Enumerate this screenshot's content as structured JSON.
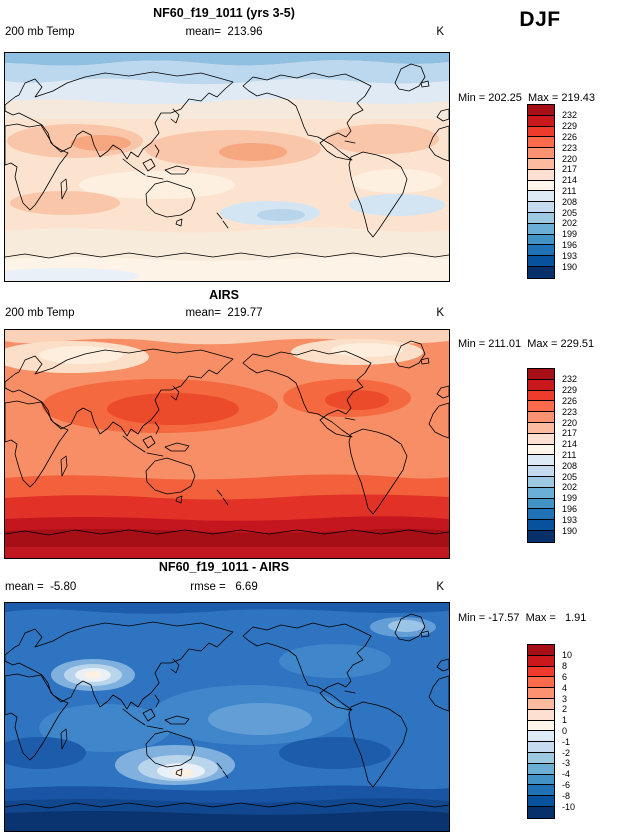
{
  "season": "DJF",
  "palette": {
    "colors": [
      "#a50f15",
      "#cb181d",
      "#ef3b2c",
      "#fb6a4a",
      "#fc9272",
      "#fcbba1",
      "#fee0d2",
      "#fff5eb",
      "#deebf7",
      "#c6dbef",
      "#9ecae1",
      "#6baed6",
      "#4292c6",
      "#2171b5",
      "#08519c",
      "#08306b"
    ]
  },
  "panels": [
    {
      "title": "NF60_f19_1011 (yrs 3-5)",
      "var_label": "200 mb Temp",
      "center_label": "mean=  213.96",
      "units": "K",
      "minmax": "Min = 202.25  Max = 219.43",
      "colorbar_labels": [
        "232",
        "229",
        "226",
        "223",
        "220",
        "217",
        "214",
        "211",
        "208",
        "205",
        "202",
        "199",
        "196",
        "193",
        "190"
      ]
    },
    {
      "title": "AIRS",
      "var_label": "200 mb Temp",
      "center_label": "mean=  219.77",
      "units": "K",
      "minmax": "Min = 211.01  Max = 229.51",
      "colorbar_labels": [
        "232",
        "229",
        "226",
        "223",
        "220",
        "217",
        "214",
        "211",
        "208",
        "205",
        "202",
        "199",
        "196",
        "193",
        "190"
      ]
    },
    {
      "title": "NF60_f19_1011 - AIRS",
      "var_label": "mean =  -5.80",
      "center_label": "rmse =   6.69",
      "units": "K",
      "minmax": "Min = -17.57  Max =   1.91",
      "colorbar_labels": [
        "10",
        "8",
        "6",
        "4",
        "3",
        "2",
        "1",
        "0",
        "-1",
        "-2",
        "-3",
        "-4",
        "-6",
        "-8",
        "-10"
      ]
    }
  ],
  "chart_data": [
    {
      "type": "heatmap",
      "title": "NF60_f19_1011 (yrs 3-5)",
      "variable": "200 mb Temp",
      "season": "DJF",
      "units": "K",
      "mean": 213.96,
      "min": 202.25,
      "max": 219.43,
      "contour_levels": [
        190,
        193,
        196,
        199,
        202,
        205,
        208,
        211,
        214,
        217,
        220,
        223,
        226,
        229,
        232
      ],
      "legend_position": "right",
      "projection": "global cylindrical lat-lon with coastlines"
    },
    {
      "type": "heatmap",
      "title": "AIRS",
      "variable": "200 mb Temp",
      "season": "DJF",
      "units": "K",
      "mean": 219.77,
      "min": 211.01,
      "max": 229.51,
      "contour_levels": [
        190,
        193,
        196,
        199,
        202,
        205,
        208,
        211,
        214,
        217,
        220,
        223,
        226,
        229,
        232
      ],
      "legend_position": "right",
      "projection": "global cylindrical lat-lon with coastlines"
    },
    {
      "type": "heatmap",
      "title": "NF60_f19_1011 - AIRS",
      "season": "DJF",
      "units": "K",
      "mean": -5.8,
      "rmse": 6.69,
      "min": -17.57,
      "max": 1.91,
      "contour_levels": [
        -10,
        -8,
        -6,
        -4,
        -3,
        -2,
        -1,
        0,
        1,
        2,
        3,
        4,
        6,
        8,
        10
      ],
      "legend_position": "right",
      "projection": "global cylindrical lat-lon with coastlines"
    }
  ]
}
